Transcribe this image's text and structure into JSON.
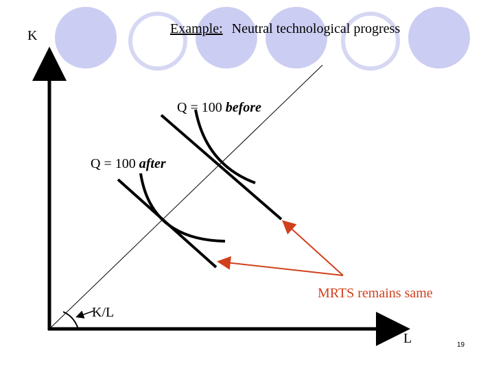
{
  "slide": {
    "title": {
      "prefix": "Example:",
      "text": "Neutral technological progress"
    },
    "axes": {
      "y_label": "K",
      "x_label": "L"
    },
    "isoquant_before": {
      "prefix": "Q = 100",
      "emphasis": "before"
    },
    "isoquant_after": {
      "prefix": "Q = 100",
      "emphasis": "after"
    },
    "note": "MRTS remains same",
    "ray_label": "K/L",
    "page_number": "19"
  }
}
